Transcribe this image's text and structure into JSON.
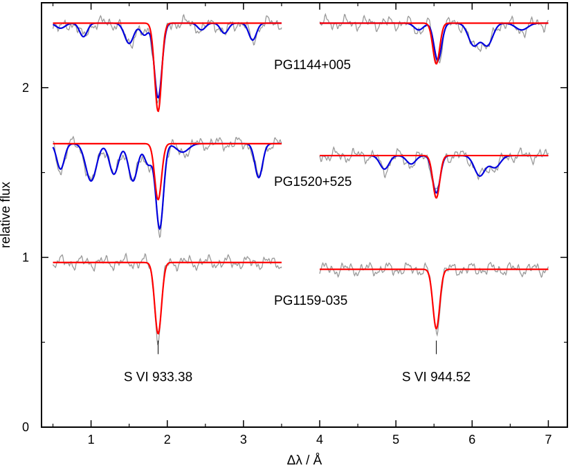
{
  "chart_data": {
    "type": "line",
    "title": "",
    "xlabel": "Δλ / Å",
    "ylabel": "relative flux",
    "xlim": [
      0.35,
      7.25
    ],
    "ylim": [
      0,
      2.5
    ],
    "x_ticks": [
      1,
      2,
      3,
      4,
      5,
      6,
      7
    ],
    "y_ticks": [
      0,
      1,
      2
    ],
    "grid": false,
    "legend": "none",
    "colors": {
      "observed": "#999999",
      "model_s_vi": "#ff0000",
      "model_full": "#0000dd"
    },
    "star_labels": [
      {
        "text": "PG1144+005",
        "x": 3.4,
        "y": 2.11
      },
      {
        "text": "PG1520+525",
        "x": 3.4,
        "y": 1.42
      },
      {
        "text": "PG1159-035",
        "x": 3.4,
        "y": 0.72
      }
    ],
    "line_ids": [
      {
        "text": "S VI 933.38",
        "x": 1.88,
        "label_y": 0.27
      },
      {
        "text": "S VI 944.52",
        "x": 5.53,
        "label_y": 0.27
      }
    ],
    "panels": [
      {
        "star": "PG1144+005",
        "segments": [
          {
            "xrange": [
              0.5,
              3.5
            ],
            "continuum": 2.38,
            "red_lines": [
              {
                "x": 1.88,
                "depth": 0.52,
                "width": 0.045
              }
            ],
            "blue_lines": [
              {
                "x": 0.6,
                "depth": 0.03,
                "width": 0.06
              },
              {
                "x": 0.9,
                "depth": 0.08,
                "width": 0.05
              },
              {
                "x": 1.5,
                "depth": 0.12,
                "width": 0.06
              },
              {
                "x": 1.7,
                "depth": 0.07,
                "width": 0.05
              },
              {
                "x": 1.88,
                "depth": 0.44,
                "width": 0.05
              },
              {
                "x": 2.45,
                "depth": 0.04,
                "width": 0.05
              },
              {
                "x": 2.75,
                "depth": 0.06,
                "width": 0.05
              },
              {
                "x": 3.12,
                "depth": 0.1,
                "width": 0.05
              }
            ]
          },
          {
            "xrange": [
              4.0,
              7.0
            ],
            "continuum": 2.38,
            "red_lines": [
              {
                "x": 5.53,
                "depth": 0.24,
                "width": 0.045
              }
            ],
            "blue_lines": [
              {
                "x": 5.55,
                "depth": 0.22,
                "width": 0.05
              },
              {
                "x": 5.3,
                "depth": 0.04,
                "width": 0.06
              },
              {
                "x": 6.02,
                "depth": 0.13,
                "width": 0.07
              },
              {
                "x": 6.2,
                "depth": 0.13,
                "width": 0.07
              },
              {
                "x": 6.65,
                "depth": 0.04,
                "width": 0.08
              }
            ]
          }
        ]
      },
      {
        "star": "PG1520+525",
        "segments": [
          {
            "xrange": [
              0.5,
              3.5
            ],
            "continuum": 1.67,
            "red_lines": [
              {
                "x": 1.88,
                "depth": 0.33,
                "width": 0.045
              }
            ],
            "blue_lines": [
              {
                "x": 0.6,
                "depth": 0.15,
                "width": 0.05
              },
              {
                "x": 1.0,
                "depth": 0.22,
                "width": 0.07
              },
              {
                "x": 1.3,
                "depth": 0.18,
                "width": 0.06
              },
              {
                "x": 1.55,
                "depth": 0.22,
                "width": 0.06
              },
              {
                "x": 1.75,
                "depth": 0.12,
                "width": 0.05
              },
              {
                "x": 1.9,
                "depth": 0.5,
                "width": 0.05
              },
              {
                "x": 3.2,
                "depth": 0.2,
                "width": 0.05
              },
              {
                "x": 2.2,
                "depth": 0.05,
                "width": 0.08
              }
            ]
          },
          {
            "xrange": [
              4.0,
              7.0
            ],
            "continuum": 1.6,
            "red_lines": [
              {
                "x": 5.53,
                "depth": 0.25,
                "width": 0.045
              }
            ],
            "blue_lines": [
              {
                "x": 5.53,
                "depth": 0.22,
                "width": 0.05
              },
              {
                "x": 4.85,
                "depth": 0.08,
                "width": 0.06
              },
              {
                "x": 5.2,
                "depth": 0.05,
                "width": 0.06
              },
              {
                "x": 6.1,
                "depth": 0.12,
                "width": 0.07
              },
              {
                "x": 6.3,
                "depth": 0.07,
                "width": 0.07
              }
            ]
          }
        ]
      },
      {
        "star": "PG1159-035",
        "segments": [
          {
            "xrange": [
              0.5,
              3.5
            ],
            "continuum": 0.97,
            "red_lines": [
              {
                "x": 1.88,
                "depth": 0.42,
                "width": 0.045
              }
            ],
            "blue_lines": []
          },
          {
            "xrange": [
              4.0,
              7.0
            ],
            "continuum": 0.93,
            "red_lines": [
              {
                "x": 5.53,
                "depth": 0.35,
                "width": 0.045
              }
            ],
            "blue_lines": []
          }
        ]
      }
    ]
  }
}
